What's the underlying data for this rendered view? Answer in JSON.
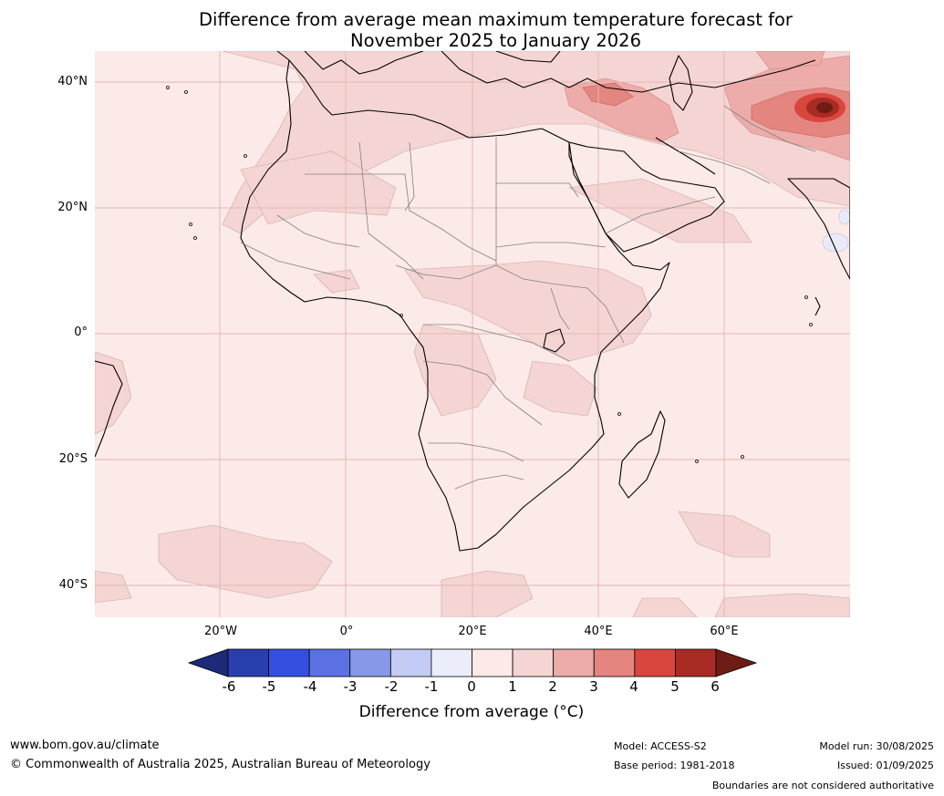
{
  "title": {
    "line1": "Difference from average mean maximum temperature forecast for",
    "line2": "November 2025 to January 2026"
  },
  "map": {
    "lat_labels": [
      "40°N",
      "20°N",
      "0°",
      "20°S",
      "40°S"
    ],
    "lon_labels": [
      "20°W",
      "0°",
      "20°E",
      "40°E",
      "60°E"
    ],
    "background_anomaly_band": "0 to 1",
    "colors": {
      "ocean_base": "#fbeae8",
      "band_1_2": "#f5d5d3",
      "band_2_3": "#edaca9",
      "band_3_4": "#e5857f",
      "band_4_5": "#d9463e",
      "band_5_6": "#a82b24",
      "band_above_6": "#6e1c16",
      "band_neg1_0": "#e9ebfb",
      "coastline": "#000000",
      "borders": "#808080",
      "gridlines": "#e3b8b5"
    }
  },
  "colorbar": {
    "ticks": [
      "-6",
      "-5",
      "-4",
      "-3",
      "-2",
      "-1",
      "0",
      "1",
      "2",
      "3",
      "4",
      "5",
      "6"
    ],
    "colors": [
      "#1c2a78",
      "#2a3fae",
      "#3550e0",
      "#5c72e4",
      "#8798e8",
      "#c4cbf4",
      "#ebedfb",
      "#fbeae8",
      "#f5d5d3",
      "#edaca9",
      "#e5857f",
      "#d9463e",
      "#a82b24",
      "#6e1c16"
    ],
    "label": "Difference from average (°C)"
  },
  "footer": {
    "website": "www.bom.gov.au/climate",
    "copyright": "© Commonwealth of Australia 2025, Australian Bureau of Meteorology",
    "model": "Model: ACCESS-S2",
    "base_period": "Base period: 1981-2018",
    "model_run": "Model run: 30/08/2025",
    "issued": "Issued: 01/09/2025",
    "disclaimer": "Boundaries are not considered authoritative"
  }
}
